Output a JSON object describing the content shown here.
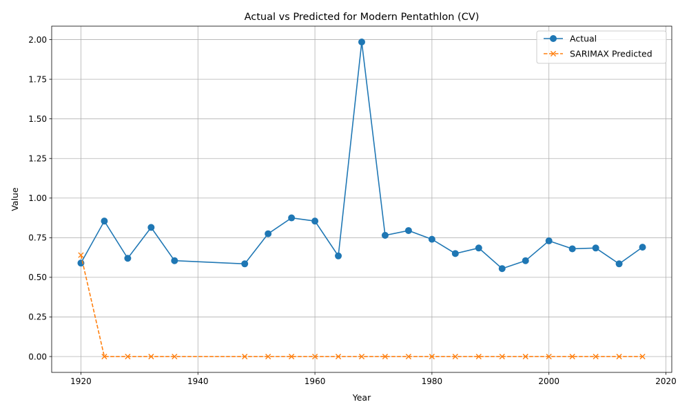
{
  "chart_data": {
    "type": "line",
    "title": "Actual vs Predicted for Modern Pentathlon (CV)",
    "xlabel": "Year",
    "ylabel": "Value",
    "xlim": [
      1915,
      2021
    ],
    "ylim": [
      -0.1,
      2.085
    ],
    "xticks": [
      1920,
      1940,
      1960,
      1980,
      2000,
      2020
    ],
    "yticks": [
      0.0,
      0.25,
      0.5,
      0.75,
      1.0,
      1.25,
      1.5,
      1.75,
      2.0
    ],
    "ytick_labels": [
      "0.00",
      "0.25",
      "0.50",
      "0.75",
      "1.00",
      "1.25",
      "1.50",
      "1.75",
      "2.00"
    ],
    "grid": true,
    "legend_position": "top-right",
    "x": [
      1920,
      1924,
      1928,
      1932,
      1936,
      1948,
      1952,
      1956,
      1960,
      1964,
      1968,
      1972,
      1976,
      1980,
      1984,
      1988,
      1992,
      1996,
      2000,
      2004,
      2008,
      2012,
      2016
    ],
    "series": [
      {
        "name": "Actual",
        "color": "#1f77b4",
        "marker": "circle",
        "linestyle": "solid",
        "values": [
          0.59,
          0.855,
          0.62,
          0.815,
          0.605,
          0.585,
          0.775,
          0.875,
          0.855,
          0.635,
          1.985,
          0.765,
          0.795,
          0.74,
          0.65,
          0.685,
          0.555,
          0.605,
          0.73,
          0.68,
          0.685,
          0.585,
          0.69
        ]
      },
      {
        "name": "SARIMAX Predicted",
        "color": "#ff7f0e",
        "marker": "x",
        "linestyle": "dashed",
        "values": [
          0.64,
          0.0,
          0.0,
          0.0,
          0.0,
          0.0,
          0.0,
          0.0,
          0.0,
          0.0,
          0.0,
          0.0,
          0.0,
          0.0,
          0.0,
          0.0,
          0.0,
          0.0,
          0.0,
          0.0,
          0.0,
          0.0,
          0.0
        ]
      }
    ]
  }
}
